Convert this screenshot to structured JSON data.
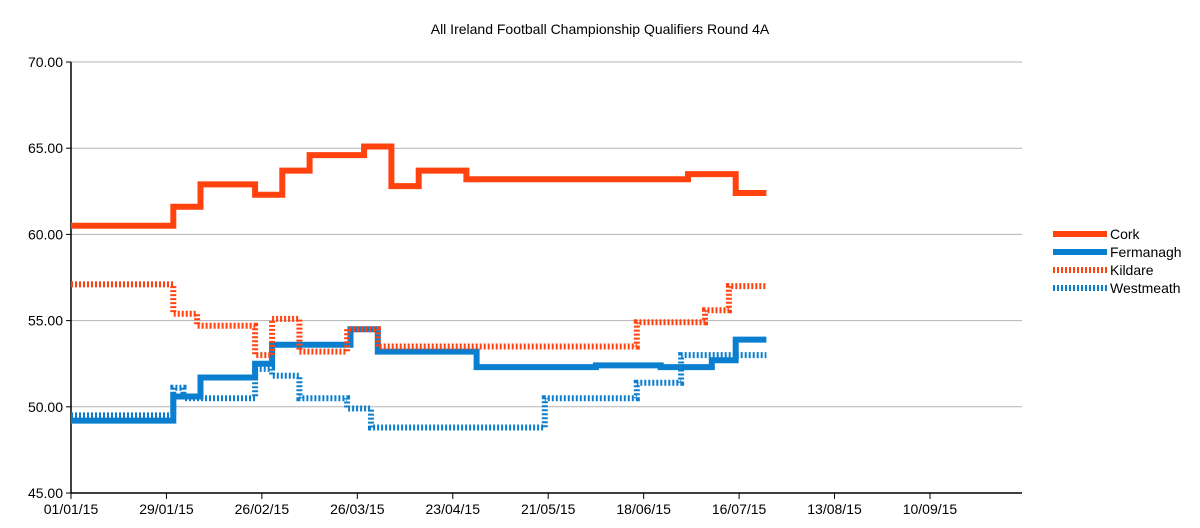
{
  "chart_data": {
    "type": "line",
    "title": "All Ireland Football Championship Qualifiers Round 4A",
    "xlabel": "",
    "ylabel": "",
    "ylim": [
      45,
      70
    ],
    "xlim": [
      "2015-01-01",
      "2015-10-07"
    ],
    "yticks": [
      "45.00",
      "50.00",
      "55.00",
      "60.00",
      "65.00",
      "70.00"
    ],
    "xticks": [
      "01/01/15",
      "29/01/15",
      "26/02/15",
      "26/03/15",
      "23/04/15",
      "21/05/15",
      "18/06/15",
      "16/07/15",
      "13/08/15",
      "10/09/15"
    ],
    "xtick_dates": [
      "2015-01-01",
      "2015-01-29",
      "2015-02-26",
      "2015-03-26",
      "2015-04-23",
      "2015-05-21",
      "2015-06-18",
      "2015-07-16",
      "2015-08-13",
      "2015-09-10"
    ],
    "grid": "horizontal",
    "legend_position": "right",
    "series": [
      {
        "name": "Cork",
        "color": "#ff420e",
        "style": "solid",
        "points": [
          [
            "2015-01-01",
            60.5
          ],
          [
            "2015-01-31",
            61.6
          ],
          [
            "2015-02-08",
            62.9
          ],
          [
            "2015-02-24",
            62.3
          ],
          [
            "2015-03-04",
            63.7
          ],
          [
            "2015-03-12",
            64.6
          ],
          [
            "2015-03-28",
            65.1
          ],
          [
            "2015-04-05",
            62.8
          ],
          [
            "2015-04-13",
            63.7
          ],
          [
            "2015-04-27",
            63.2
          ],
          [
            "2015-07-01",
            63.5
          ],
          [
            "2015-07-15",
            62.4
          ],
          [
            "2015-07-24",
            62.4
          ]
        ]
      },
      {
        "name": "Fermanagh",
        "color": "#0b7fcf",
        "style": "solid",
        "points": [
          [
            "2015-01-01",
            49.2
          ],
          [
            "2015-01-31",
            50.6
          ],
          [
            "2015-02-08",
            51.7
          ],
          [
            "2015-02-24",
            52.5
          ],
          [
            "2015-03-01",
            53.6
          ],
          [
            "2015-03-24",
            54.5
          ],
          [
            "2015-04-01",
            53.2
          ],
          [
            "2015-04-30",
            52.3
          ],
          [
            "2015-06-04",
            52.4
          ],
          [
            "2015-06-23",
            52.3
          ],
          [
            "2015-07-08",
            52.7
          ],
          [
            "2015-07-15",
            53.9
          ],
          [
            "2015-07-24",
            53.9
          ]
        ]
      },
      {
        "name": "Kildare",
        "color": "#ff420e",
        "style": "dashed",
        "points": [
          [
            "2015-01-01",
            57.1
          ],
          [
            "2015-01-31",
            55.4
          ],
          [
            "2015-02-07",
            54.7
          ],
          [
            "2015-02-24",
            53.0
          ],
          [
            "2015-03-01",
            55.1
          ],
          [
            "2015-03-09",
            53.2
          ],
          [
            "2015-03-23",
            54.5
          ],
          [
            "2015-04-01",
            53.5
          ],
          [
            "2015-06-16",
            54.9
          ],
          [
            "2015-07-06",
            55.6
          ],
          [
            "2015-07-13",
            57.0
          ],
          [
            "2015-07-24",
            57.0
          ]
        ]
      },
      {
        "name": "Westmeath",
        "color": "#0b7fcf",
        "style": "dashed",
        "points": [
          [
            "2015-01-01",
            49.5
          ],
          [
            "2015-01-31",
            51.1
          ],
          [
            "2015-02-03",
            50.5
          ],
          [
            "2015-02-24",
            52.2
          ],
          [
            "2015-03-01",
            51.8
          ],
          [
            "2015-03-09",
            50.5
          ],
          [
            "2015-03-23",
            49.9
          ],
          [
            "2015-03-30",
            48.8
          ],
          [
            "2015-05-20",
            50.5
          ],
          [
            "2015-06-16",
            51.4
          ],
          [
            "2015-06-29",
            53.0
          ],
          [
            "2015-07-24",
            53.0
          ]
        ]
      }
    ]
  }
}
